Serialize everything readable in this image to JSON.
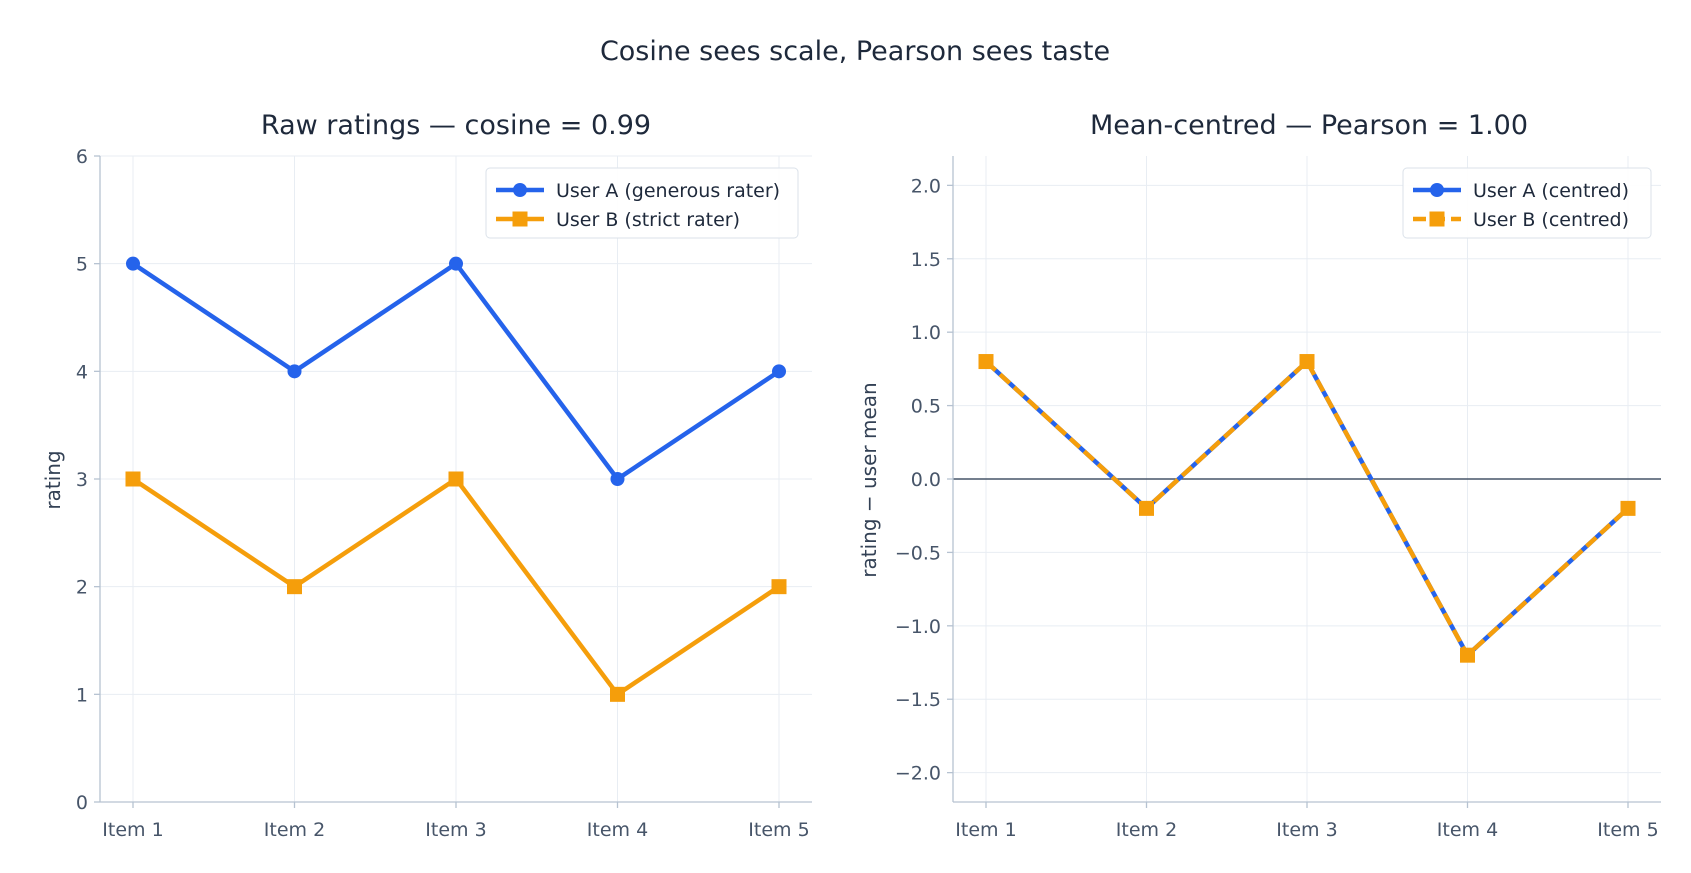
{
  "figure": {
    "title": "Cosine sees scale, Pearson sees taste"
  },
  "chart_data": [
    {
      "type": "line",
      "title": "Raw ratings — cosine = 0.99",
      "xlabel": "",
      "ylabel": "rating",
      "categories": [
        "Item 1",
        "Item 2",
        "Item 3",
        "Item 4",
        "Item 5"
      ],
      "ylim": [
        0,
        6
      ],
      "yticks": [
        0,
        1,
        2,
        3,
        4,
        5,
        6
      ],
      "ytick_labels": [
        "0",
        "1",
        "2",
        "3",
        "4",
        "5",
        "6"
      ],
      "grid": true,
      "legend_position": "top-right",
      "series": [
        {
          "name": "User A (generous rater)",
          "values": [
            5,
            4,
            5,
            3,
            4
          ],
          "color": "#2563eb",
          "marker": "circle",
          "dashed": false
        },
        {
          "name": "User B (strict rater)",
          "values": [
            3,
            2,
            3,
            1,
            2
          ],
          "color": "#f59e0b",
          "marker": "square",
          "dashed": false
        }
      ]
    },
    {
      "type": "line",
      "title": "Mean-centred — Pearson = 1.00",
      "xlabel": "",
      "ylabel": "rating − user mean",
      "categories": [
        "Item 1",
        "Item 2",
        "Item 3",
        "Item 4",
        "Item 5"
      ],
      "ylim": [
        -2.2,
        2.2
      ],
      "yticks": [
        -2.0,
        -1.5,
        -1.0,
        -0.5,
        0.0,
        0.5,
        1.0,
        1.5,
        2.0
      ],
      "ytick_labels": [
        "−2.0",
        "−1.5",
        "−1.0",
        "−0.5",
        "0.0",
        "0.5",
        "1.0",
        "1.5",
        "2.0"
      ],
      "zero_line": true,
      "grid": true,
      "legend_position": "top-right",
      "series": [
        {
          "name": "User A (centred)",
          "values": [
            0.8,
            -0.2,
            0.8,
            -1.2,
            -0.2
          ],
          "color": "#2563eb",
          "marker": "circle",
          "dashed": false
        },
        {
          "name": "User B (centred)",
          "values": [
            0.8,
            -0.2,
            0.8,
            -1.2,
            -0.2
          ],
          "color": "#f59e0b",
          "marker": "square",
          "dashed": true
        }
      ]
    }
  ]
}
